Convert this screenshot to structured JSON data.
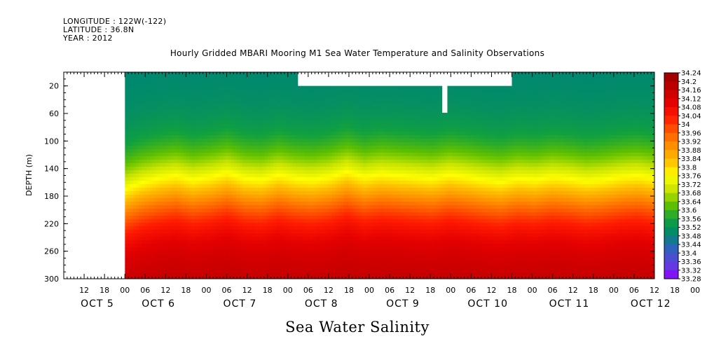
{
  "header": {
    "longitude": "LONGITUDE : 122W(-122)",
    "latitude": "LATITUDE : 36.8N",
    "year": "YEAR : 2012"
  },
  "colors": {
    "palette": [
      "#9a0000",
      "#c00000",
      "#e40000",
      "#ff1a00",
      "#ff5a00",
      "#ff9000",
      "#ffc000",
      "#ffff00",
      "#c8e400",
      "#60c000",
      "#10a040",
      "#008870",
      "#3060c0",
      "#6040e0",
      "#9000ff"
    ]
  },
  "chart_data": {
    "type": "heatmap",
    "title": "Hourly Gridded MBARI Mooring M1 Sea Water Temperature and Salinity Observations",
    "xlabel": "Sea Water Salinity",
    "ylabel": "DEPTH (m)",
    "ylim": [
      0,
      300
    ],
    "y_inverted": true,
    "y_ticks": [
      20,
      60,
      100,
      140,
      180,
      220,
      260,
      300
    ],
    "x_hour_labels": [
      "12",
      "18",
      "00",
      "06",
      "12",
      "18",
      "00",
      "06",
      "12",
      "18",
      "00",
      "06",
      "12",
      "18",
      "00",
      "06",
      "12",
      "18",
      "00",
      "06",
      "12",
      "18",
      "00",
      "06",
      "12",
      "18",
      "00",
      "06",
      "12",
      "18",
      "00",
      "06"
    ],
    "x_day_labels": [
      "OCT  5",
      "OCT  6",
      "OCT  7",
      "OCT  8",
      "OCT  9",
      "OCT 10",
      "OCT 11",
      "OCT 12"
    ],
    "x_range_hours": [
      -12,
      162
    ],
    "data_start_hour": 6,
    "colorbar_levels": [
      "34.24",
      "34.2",
      "34.16",
      "34.12",
      "34.08",
      "34.04",
      "34",
      "33.96",
      "33.92",
      "33.88",
      "33.84",
      "33.8",
      "33.76",
      "33.72",
      "33.68",
      "33.64",
      "33.6",
      "33.56",
      "33.52",
      "33.48",
      "33.44",
      "33.4",
      "33.36",
      "33.32",
      "33.28"
    ],
    "surface_salinity": 33.48,
    "bottom_salinity": 34.18,
    "thermocline_depth_m": [
      186,
      176,
      170,
      166,
      172,
      168,
      162,
      170,
      172,
      165,
      170,
      172,
      168,
      160,
      168,
      164,
      166,
      168,
      170,
      165,
      168,
      172,
      175,
      170,
      172,
      168,
      170,
      174,
      172,
      168,
      166,
      170
    ]
  }
}
